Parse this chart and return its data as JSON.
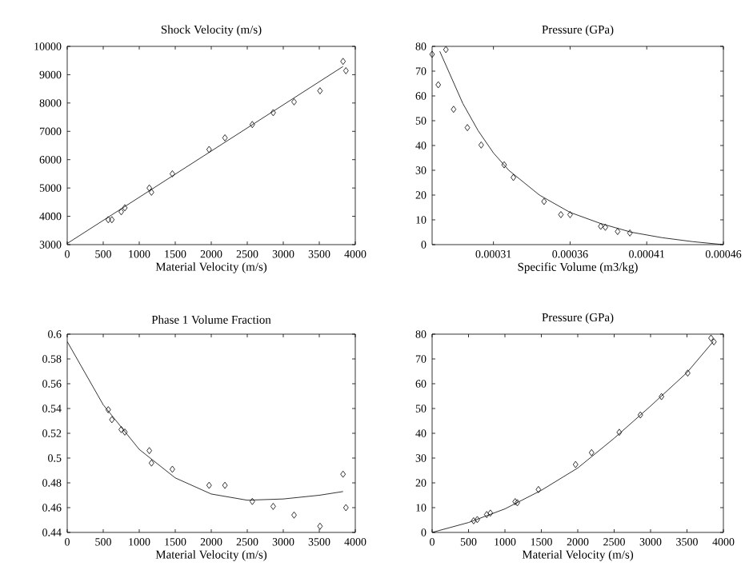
{
  "chart_data": [
    {
      "type": "scatter",
      "title": "Shock Velocity (m/s)",
      "xlabel": "Material Velocity (m/s)",
      "xlim": [
        0,
        4000
      ],
      "ylim": [
        3000,
        10000
      ],
      "xticks": [
        0,
        500,
        1000,
        1500,
        2000,
        2500,
        3000,
        3500,
        4000
      ],
      "yticks": [
        3000,
        4000,
        5000,
        6000,
        7000,
        8000,
        9000,
        10000
      ],
      "series": [
        {
          "color": "#000000",
          "marker": "diamond",
          "x": [
            570,
            620,
            750,
            800,
            1140,
            1170,
            1460,
            1970,
            2190,
            2570,
            2860,
            3150,
            3510,
            3830,
            3870
          ],
          "values": [
            3880,
            3880,
            4160,
            4300,
            5000,
            4850,
            5500,
            6360,
            6770,
            7240,
            7660,
            8040,
            8430,
            9470,
            9140
          ]
        },
        {
          "type": "line",
          "color": "#000000",
          "marker": "none",
          "line_style": "solid",
          "x": [
            0,
            3830
          ],
          "values": [
            3040,
            9290
          ]
        }
      ]
    },
    {
      "type": "scatter",
      "title": "Pressure (GPa)",
      "xlabel": "Specific Volume (m3/kg)",
      "xlim": [
        0.00027,
        0.00046
      ],
      "ylim": [
        0,
        80
      ],
      "xticks": [
        0.00031,
        0.00036,
        0.00041,
        0.00046
      ],
      "yticks": [
        0,
        10,
        20,
        30,
        40,
        50,
        60,
        70,
        80
      ],
      "series": [
        {
          "color": "#000000",
          "marker": "diamond",
          "x": [
            0.00027,
            0.000274,
            0.000279,
            0.000284,
            0.000293,
            0.000302,
            0.000317,
            0.000323,
            0.000343,
            0.000354,
            0.00036,
            0.00038,
            0.000383,
            0.000391,
            0.000399
          ],
          "values": [
            76.8,
            64.5,
            78.7,
            54.6,
            47.2,
            40.2,
            32.2,
            27.1,
            17.4,
            12.1,
            12.1,
            7.4,
            7.0,
            5.3,
            4.7
          ]
        },
        {
          "type": "line",
          "color": "#000000",
          "marker": "none",
          "line_style": "solid",
          "x": [
            0.000275,
            0.00029,
            0.0003,
            0.00031,
            0.00032,
            0.00034,
            0.00036,
            0.00038,
            0.0004,
            0.00042,
            0.00044,
            0.00046
          ],
          "values": [
            78,
            57,
            46,
            37,
            30,
            20,
            13,
            8.5,
            5,
            2.8,
            1.2,
            0
          ]
        }
      ]
    },
    {
      "type": "scatter",
      "title": "Phase 1 Volume Fraction",
      "xlabel": "Material Velocity (m/s)",
      "xlim": [
        0,
        4000
      ],
      "ylim": [
        0.44,
        0.6
      ],
      "xticks": [
        0,
        500,
        1000,
        1500,
        2000,
        2500,
        3000,
        3500,
        4000
      ],
      "yticks": [
        0.44,
        0.46,
        0.48,
        0.5,
        0.52,
        0.54,
        0.56,
        0.58,
        0.6
      ],
      "series": [
        {
          "color": "#000000",
          "marker": "diamond",
          "x": [
            570,
            620,
            750,
            800,
            1140,
            1170,
            1460,
            1970,
            2190,
            2570,
            2860,
            3150,
            3510,
            3830,
            3870
          ],
          "values": [
            0.539,
            0.531,
            0.523,
            0.521,
            0.506,
            0.496,
            0.491,
            0.478,
            0.478,
            0.465,
            0.461,
            0.454,
            0.445,
            0.487,
            0.46
          ]
        },
        {
          "type": "line",
          "color": "#000000",
          "marker": "none",
          "line_style": "solid",
          "x": [
            0,
            500,
            1000,
            1500,
            2000,
            2500,
            3000,
            3500,
            3830
          ],
          "values": [
            0.594,
            0.543,
            0.507,
            0.484,
            0.471,
            0.466,
            0.467,
            0.47,
            0.473
          ]
        }
      ]
    },
    {
      "type": "scatter",
      "title": "Pressure (GPa)",
      "xlabel": "Material Velocity (m/s)",
      "xlim": [
        0,
        4000
      ],
      "ylim": [
        0,
        80
      ],
      "xticks": [
        0,
        500,
        1000,
        1500,
        2000,
        2500,
        3000,
        3500,
        4000
      ],
      "yticks": [
        0,
        10,
        20,
        30,
        40,
        50,
        60,
        70,
        80
      ],
      "series": [
        {
          "color": "#000000",
          "marker": "diamond",
          "x": [
            570,
            620,
            750,
            800,
            1140,
            1170,
            1460,
            1970,
            2190,
            2570,
            2860,
            3150,
            3510,
            3830,
            3870
          ],
          "values": [
            4.7,
            5.2,
            7.2,
            7.8,
            12.4,
            12,
            17.3,
            27.4,
            32.2,
            40.4,
            47.4,
            54.8,
            64.3,
            78.4,
            76.9
          ]
        },
        {
          "type": "line",
          "color": "#000000",
          "marker": "none",
          "line_style": "solid",
          "x": [
            0,
            500,
            1000,
            1500,
            2000,
            2500,
            3000,
            3500,
            3860
          ],
          "values": [
            0,
            4,
            9.5,
            17,
            26,
            38,
            51,
            64.5,
            77
          ]
        }
      ]
    }
  ]
}
